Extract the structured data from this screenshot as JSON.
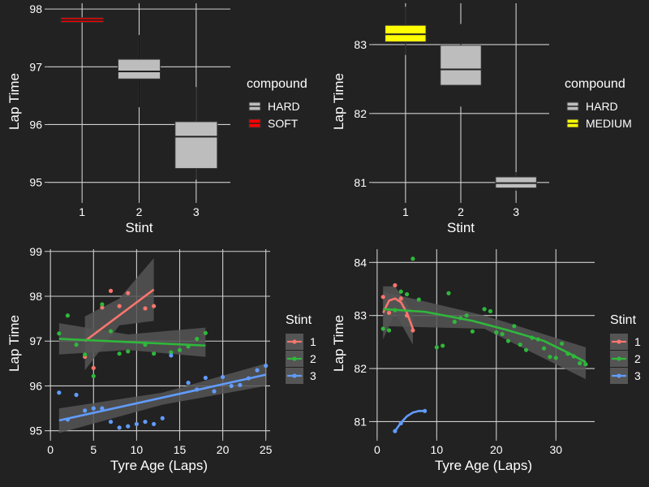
{
  "theme": {
    "background": "#222222",
    "grid": "#cfcfcf",
    "text": "#ffffff",
    "box_fill": "#bdbdbd",
    "ribbon": "#555555"
  },
  "chart_data": [
    {
      "type": "boxplot",
      "xlabel": "Stint",
      "ylabel": "Lap Time",
      "xlim": [
        0.4,
        3.6
      ],
      "ylim": [
        94.7,
        98.1
      ],
      "x_ticks": [
        1,
        2,
        3
      ],
      "y_ticks": [
        95,
        96,
        97,
        98
      ],
      "grid": true,
      "legend": {
        "title": "compound",
        "position": "right",
        "entries": [
          {
            "label": "HARD",
            "color": "#bdbdbd"
          },
          {
            "label": "SOFT",
            "color": "#ff0000"
          }
        ]
      },
      "boxes": [
        {
          "x": 1,
          "compound": "SOFT",
          "color": "#ff0000",
          "q1": 97.77,
          "median": 97.81,
          "q3": 97.85,
          "whisker_low": 97.77,
          "whisker_high": 97.85
        },
        {
          "x": 2,
          "compound": "HARD",
          "color": "#bdbdbd",
          "q1": 96.79,
          "median": 96.92,
          "q3": 97.13,
          "whisker_low": 96.3,
          "whisker_high": 97.55
        },
        {
          "x": 3,
          "compound": "HARD",
          "color": "#bdbdbd",
          "q1": 95.24,
          "median": 95.79,
          "q3": 96.05,
          "whisker_low": 95.05,
          "whisker_high": 96.65
        }
      ]
    },
    {
      "type": "boxplot",
      "xlabel": "Stint",
      "ylabel": "Lap Time",
      "xlim": [
        0.4,
        3.6
      ],
      "ylim": [
        80.75,
        83.6
      ],
      "x_ticks": [
        1,
        2,
        3
      ],
      "y_ticks": [
        81,
        82,
        83
      ],
      "grid": true,
      "legend": {
        "title": "compound",
        "position": "right",
        "entries": [
          {
            "label": "HARD",
            "color": "#bdbdbd"
          },
          {
            "label": "MEDIUM",
            "color": "#ffff00"
          }
        ]
      },
      "boxes": [
        {
          "x": 1,
          "compound": "MEDIUM",
          "color": "#ffff00",
          "q1": 83.04,
          "median": 83.15,
          "q3": 83.28,
          "whisker_low": 82.85,
          "whisker_high": 83.55
        },
        {
          "x": 2,
          "compound": "HARD",
          "color": "#bdbdbd",
          "q1": 82.41,
          "median": 82.64,
          "q3": 82.99,
          "whisker_low": 82.1,
          "whisker_high": 83.3
        },
        {
          "x": 3,
          "compound": "HARD",
          "color": "#bdbdbd",
          "q1": 80.92,
          "median": 80.99,
          "q3": 81.08,
          "whisker_low": 80.88,
          "whisker_high": 81.15
        }
      ]
    },
    {
      "type": "scatter",
      "xlabel": "Tyre Age (Laps)",
      "ylabel": "Lap Time",
      "xlim": [
        -0.3,
        25.5
      ],
      "ylim": [
        94.85,
        99.05
      ],
      "x_ticks": [
        0,
        5,
        10,
        15,
        20,
        25
      ],
      "y_ticks": [
        95,
        96,
        97,
        98,
        99
      ],
      "grid": true,
      "legend": {
        "title": "Stint",
        "position": "right"
      },
      "series": [
        {
          "name": "1",
          "color": "#f8766d",
          "points": [
            [
              4,
              96.65
            ],
            [
              5,
              96.4
            ],
            [
              6,
              97.75
            ],
            [
              7,
              98.12
            ],
            [
              8,
              97.78
            ],
            [
              9,
              98.07
            ],
            [
              11,
              97.73
            ],
            [
              12,
              97.78
            ]
          ],
          "fit": {
            "x": [
              4,
              12
            ],
            "y": [
              97.0,
              98.15
            ]
          },
          "band": [
            {
              "x": 4,
              "lo": 96.35,
              "hi": 97.55
            },
            {
              "x": 8,
              "lo": 97.35,
              "hi": 97.95
            },
            {
              "x": 12,
              "lo": 97.45,
              "hi": 98.85
            }
          ]
        },
        {
          "name": "2",
          "color": "#2fb83b",
          "points": [
            [
              1,
              97.17
            ],
            [
              2,
              97.57
            ],
            [
              3,
              96.92
            ],
            [
              4,
              96.7
            ],
            [
              5,
              96.22
            ],
            [
              6,
              97.82
            ],
            [
              7,
              97.22
            ],
            [
              8,
              96.72
            ],
            [
              9,
              96.77
            ],
            [
              11,
              96.92
            ],
            [
              12,
              96.72
            ],
            [
              14,
              96.75
            ],
            [
              15,
              96.8
            ],
            [
              16,
              96.88
            ],
            [
              17,
              97.05
            ],
            [
              18,
              97.18
            ]
          ],
          "fit": {
            "x": [
              1,
              18
            ],
            "y": [
              97.05,
              96.9
            ]
          },
          "band": [
            {
              "x": 1,
              "lo": 96.7,
              "hi": 97.4
            },
            {
              "x": 9,
              "lo": 96.8,
              "hi": 97.15
            },
            {
              "x": 18,
              "lo": 96.65,
              "hi": 97.3
            }
          ]
        },
        {
          "name": "3",
          "color": "#619cff",
          "points": [
            [
              1,
              95.85
            ],
            [
              2,
              95.25
            ],
            [
              3,
              95.8
            ],
            [
              4,
              95.45
            ],
            [
              5,
              95.5
            ],
            [
              6,
              95.5
            ],
            [
              7,
              95.2
            ],
            [
              8,
              95.07
            ],
            [
              9,
              95.1
            ],
            [
              10,
              95.15
            ],
            [
              11,
              95.2
            ],
            [
              12,
              95.15
            ],
            [
              13,
              95.28
            ],
            [
              14,
              96.68
            ],
            [
              16,
              96.07
            ],
            [
              17,
              95.92
            ],
            [
              18,
              96.18
            ],
            [
              19,
              95.88
            ],
            [
              20,
              96.2
            ],
            [
              21,
              96.0
            ],
            [
              22,
              96.02
            ],
            [
              23,
              96.17
            ],
            [
              24,
              96.35
            ],
            [
              25,
              96.45
            ]
          ],
          "fit": {
            "x": [
              1,
              25
            ],
            "y": [
              95.23,
              96.25
            ]
          },
          "band": [
            {
              "x": 1,
              "lo": 94.95,
              "hi": 95.5
            },
            {
              "x": 13,
              "lo": 95.58,
              "hi": 95.85
            },
            {
              "x": 25,
              "lo": 96.0,
              "hi": 96.5
            }
          ]
        }
      ]
    },
    {
      "type": "scatter",
      "xlabel": "Tyre Age (Laps)",
      "ylabel": "Lap Time",
      "xlim": [
        -0.8,
        36.5
      ],
      "ylim": [
        80.7,
        84.25
      ],
      "x_ticks": [
        0,
        10,
        20,
        30
      ],
      "y_ticks": [
        81,
        82,
        83,
        84
      ],
      "grid": true,
      "legend": {
        "title": "Stint",
        "position": "right"
      },
      "series": [
        {
          "name": "1",
          "color": "#f8766d",
          "points": [
            [
              1,
              83.35
            ],
            [
              2,
              83.05
            ],
            [
              3,
              83.57
            ],
            [
              4,
              83.32
            ],
            [
              5,
              83.0
            ],
            [
              6,
              82.72
            ]
          ],
          "fit": {
            "x": [
              1,
              2,
              3,
              4,
              5,
              6
            ],
            "y": [
              83.05,
              83.28,
              83.32,
              83.25,
              83.05,
              82.75
            ]
          },
          "band": [
            {
              "x": 1,
              "lo": 82.55,
              "hi": 83.55
            },
            {
              "x": 3,
              "lo": 83.05,
              "hi": 83.55
            },
            {
              "x": 6,
              "lo": 82.45,
              "hi": 83.05
            }
          ]
        },
        {
          "name": "2",
          "color": "#2fb83b",
          "points": [
            [
              1,
              82.75
            ],
            [
              2,
              82.72
            ],
            [
              3,
              83.1
            ],
            [
              4,
              83.45
            ],
            [
              5,
              83.4
            ],
            [
              6,
              84.07
            ],
            [
              7,
              83.3
            ],
            [
              10,
              82.4
            ],
            [
              11,
              82.43
            ],
            [
              12,
              83.42
            ],
            [
              13,
              82.88
            ],
            [
              14,
              82.95
            ],
            [
              15,
              83.0
            ],
            [
              16,
              82.7
            ],
            [
              18,
              83.12
            ],
            [
              19,
              83.08
            ],
            [
              20,
              82.68
            ],
            [
              21,
              82.65
            ],
            [
              22,
              82.52
            ],
            [
              23,
              82.8
            ],
            [
              24,
              82.45
            ],
            [
              25,
              82.35
            ],
            [
              26,
              82.58
            ],
            [
              27,
              82.55
            ],
            [
              28,
              82.38
            ],
            [
              29,
              82.22
            ],
            [
              30,
              82.2
            ],
            [
              31,
              82.47
            ],
            [
              32,
              82.28
            ],
            [
              33,
              82.23
            ],
            [
              34,
              82.1
            ],
            [
              35,
              82.08
            ]
          ],
          "fit": {
            "x": [
              1,
              8,
              16,
              22,
              28,
              32,
              35
            ],
            "y": [
              83.12,
              83.07,
              82.9,
              82.72,
              82.52,
              82.3,
              82.12
            ]
          },
          "band": [
            {
              "x": 1,
              "lo": 82.8,
              "hi": 83.45
            },
            {
              "x": 18,
              "lo": 82.75,
              "hi": 83.0
            },
            {
              "x": 35,
              "lo": 81.8,
              "hi": 82.4
            }
          ]
        },
        {
          "name": "3",
          "color": "#619cff",
          "points": [
            [
              3,
              80.82
            ],
            [
              4,
              80.97
            ],
            [
              8,
              81.2
            ]
          ],
          "fit": {
            "x": [
              3,
              4,
              5,
              6,
              7,
              8
            ],
            "y": [
              80.82,
              80.98,
              81.1,
              81.17,
              81.2,
              81.2
            ]
          },
          "band": []
        }
      ]
    }
  ]
}
